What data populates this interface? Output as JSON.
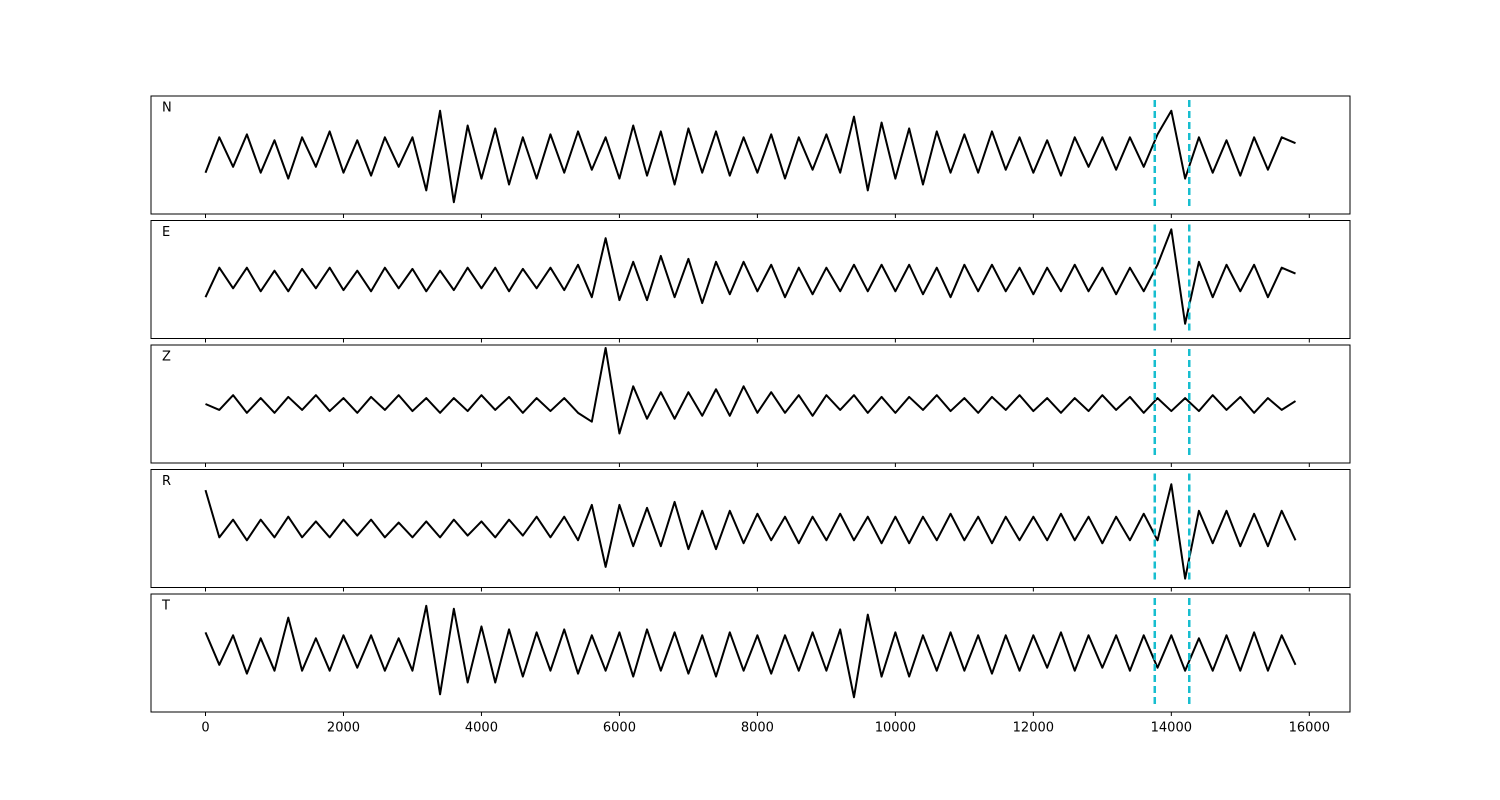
{
  "chart_data": {
    "type": "line",
    "layout": "stacked",
    "x": [
      0,
      200,
      400,
      600,
      800,
      1000,
      1200,
      1400,
      1600,
      1800,
      2000,
      2200,
      2400,
      2600,
      2800,
      3000,
      3200,
      3400,
      3600,
      3800,
      4000,
      4200,
      4400,
      4600,
      4800,
      5000,
      5200,
      5400,
      5600,
      5800,
      6000,
      6200,
      6400,
      6600,
      6800,
      7000,
      7200,
      7400,
      7600,
      7800,
      8000,
      8200,
      8400,
      8600,
      8800,
      9000,
      9200,
      9400,
      9600,
      9800,
      10000,
      10200,
      10400,
      10600,
      10800,
      11000,
      11200,
      11400,
      11600,
      11800,
      12000,
      12200,
      12400,
      12600,
      12800,
      13000,
      13200,
      13400,
      13600,
      13800,
      14000,
      14200,
      14400,
      14600,
      14800,
      15000,
      15200,
      15400,
      15600,
      15800
    ],
    "xlim": [
      -790,
      16590
    ],
    "xticks": [
      0,
      2000,
      4000,
      6000,
      8000,
      10000,
      12000,
      14000,
      16000
    ],
    "ylim": [
      -1,
      1
    ],
    "series": [
      {
        "name": "N",
        "color": "#000000",
        "values": [
          -0.3,
          0.3,
          -0.2,
          0.35,
          -0.3,
          0.25,
          -0.4,
          0.3,
          -0.2,
          0.4,
          -0.3,
          0.25,
          -0.35,
          0.3,
          -0.2,
          0.3,
          -0.6,
          0.75,
          -0.8,
          0.5,
          -0.4,
          0.45,
          -0.5,
          0.3,
          -0.4,
          0.35,
          -0.3,
          0.4,
          -0.25,
          0.3,
          -0.4,
          0.5,
          -0.35,
          0.4,
          -0.5,
          0.45,
          -0.3,
          0.4,
          -0.35,
          0.3,
          -0.3,
          0.35,
          -0.4,
          0.3,
          -0.25,
          0.35,
          -0.3,
          0.65,
          -0.6,
          0.55,
          -0.4,
          0.45,
          -0.5,
          0.4,
          -0.3,
          0.35,
          -0.3,
          0.4,
          -0.25,
          0.3,
          -0.3,
          0.25,
          -0.35,
          0.3,
          -0.2,
          0.3,
          -0.25,
          0.3,
          -0.2,
          0.35,
          0.75,
          -0.4,
          0.3,
          -0.3,
          0.25,
          -0.35,
          0.3,
          -0.25,
          0.3,
          0.2
        ]
      },
      {
        "name": "E",
        "color": "#000000",
        "values": [
          -0.3,
          0.2,
          -0.15,
          0.2,
          -0.2,
          0.15,
          -0.2,
          0.18,
          -0.15,
          0.2,
          -0.18,
          0.15,
          -0.2,
          0.2,
          -0.15,
          0.18,
          -0.2,
          0.15,
          -0.18,
          0.2,
          -0.15,
          0.2,
          -0.2,
          0.18,
          -0.15,
          0.2,
          -0.18,
          0.25,
          -0.3,
          0.7,
          -0.35,
          0.3,
          -0.35,
          0.4,
          -0.3,
          0.35,
          -0.4,
          0.3,
          -0.25,
          0.3,
          -0.2,
          0.25,
          -0.3,
          0.2,
          -0.25,
          0.2,
          -0.2,
          0.25,
          -0.2,
          0.25,
          -0.2,
          0.25,
          -0.25,
          0.2,
          -0.3,
          0.25,
          -0.2,
          0.25,
          -0.2,
          0.2,
          -0.25,
          0.2,
          -0.2,
          0.25,
          -0.2,
          0.2,
          -0.25,
          0.2,
          -0.2,
          0.25,
          0.85,
          -0.75,
          0.3,
          -0.3,
          0.25,
          -0.2,
          0.25,
          -0.3,
          0.2,
          0.1
        ]
      },
      {
        "name": "Z",
        "color": "#000000",
        "values": [
          0.0,
          -0.1,
          0.15,
          -0.15,
          0.1,
          -0.15,
          0.12,
          -0.1,
          0.15,
          -0.12,
          0.1,
          -0.15,
          0.12,
          -0.1,
          0.15,
          -0.12,
          0.1,
          -0.15,
          0.1,
          -0.12,
          0.15,
          -0.1,
          0.12,
          -0.15,
          0.1,
          -0.12,
          0.1,
          -0.15,
          -0.3,
          0.95,
          -0.5,
          0.3,
          -0.25,
          0.2,
          -0.25,
          0.2,
          -0.2,
          0.25,
          -0.2,
          0.3,
          -0.15,
          0.2,
          -0.15,
          0.15,
          -0.2,
          0.15,
          -0.1,
          0.15,
          -0.15,
          0.12,
          -0.15,
          0.12,
          -0.1,
          0.15,
          -0.12,
          0.1,
          -0.15,
          0.12,
          -0.1,
          0.15,
          -0.12,
          0.1,
          -0.15,
          0.1,
          -0.12,
          0.15,
          -0.1,
          0.12,
          -0.15,
          0.1,
          -0.12,
          0.1,
          -0.12,
          0.15,
          -0.1,
          0.12,
          -0.15,
          0.1,
          -0.1,
          0.05
        ]
      },
      {
        "name": "R",
        "color": "#000000",
        "values": [
          0.65,
          -0.15,
          0.15,
          -0.2,
          0.15,
          -0.15,
          0.2,
          -0.15,
          0.12,
          -0.15,
          0.15,
          -0.12,
          0.15,
          -0.15,
          0.1,
          -0.15,
          0.12,
          -0.15,
          0.15,
          -0.12,
          0.12,
          -0.15,
          0.15,
          -0.12,
          0.2,
          -0.15,
          0.2,
          -0.2,
          0.4,
          -0.65,
          0.4,
          -0.3,
          0.35,
          -0.3,
          0.45,
          -0.35,
          0.3,
          -0.35,
          0.3,
          -0.25,
          0.25,
          -0.2,
          0.2,
          -0.25,
          0.2,
          -0.2,
          0.25,
          -0.2,
          0.2,
          -0.25,
          0.2,
          -0.25,
          0.2,
          -0.2,
          0.25,
          -0.2,
          0.2,
          -0.25,
          0.2,
          -0.2,
          0.2,
          -0.2,
          0.25,
          -0.2,
          0.2,
          -0.25,
          0.2,
          -0.2,
          0.25,
          -0.2,
          0.75,
          -0.85,
          0.3,
          -0.25,
          0.3,
          -0.3,
          0.25,
          -0.3,
          0.3,
          -0.2
        ]
      },
      {
        "name": "T",
        "color": "#000000",
        "values": [
          0.35,
          -0.2,
          0.3,
          -0.35,
          0.25,
          -0.3,
          0.6,
          -0.3,
          0.25,
          -0.3,
          0.3,
          -0.25,
          0.3,
          -0.3,
          0.25,
          -0.3,
          0.8,
          -0.7,
          0.75,
          -0.5,
          0.45,
          -0.5,
          0.4,
          -0.4,
          0.35,
          -0.3,
          0.4,
          -0.35,
          0.3,
          -0.3,
          0.35,
          -0.4,
          0.4,
          -0.3,
          0.35,
          -0.35,
          0.3,
          -0.4,
          0.35,
          -0.3,
          0.3,
          -0.35,
          0.3,
          -0.3,
          0.35,
          -0.3,
          0.4,
          -0.75,
          0.65,
          -0.4,
          0.35,
          -0.4,
          0.3,
          -0.3,
          0.35,
          -0.3,
          0.3,
          -0.35,
          0.3,
          -0.3,
          0.3,
          -0.25,
          0.35,
          -0.3,
          0.3,
          -0.25,
          0.3,
          -0.3,
          0.3,
          -0.25,
          0.3,
          -0.3,
          0.25,
          -0.3,
          0.3,
          -0.3,
          0.35,
          -0.3,
          0.3,
          -0.2
        ]
      }
    ],
    "vlines": {
      "values": [
        13760,
        14260
      ],
      "color": "#17becf"
    }
  }
}
